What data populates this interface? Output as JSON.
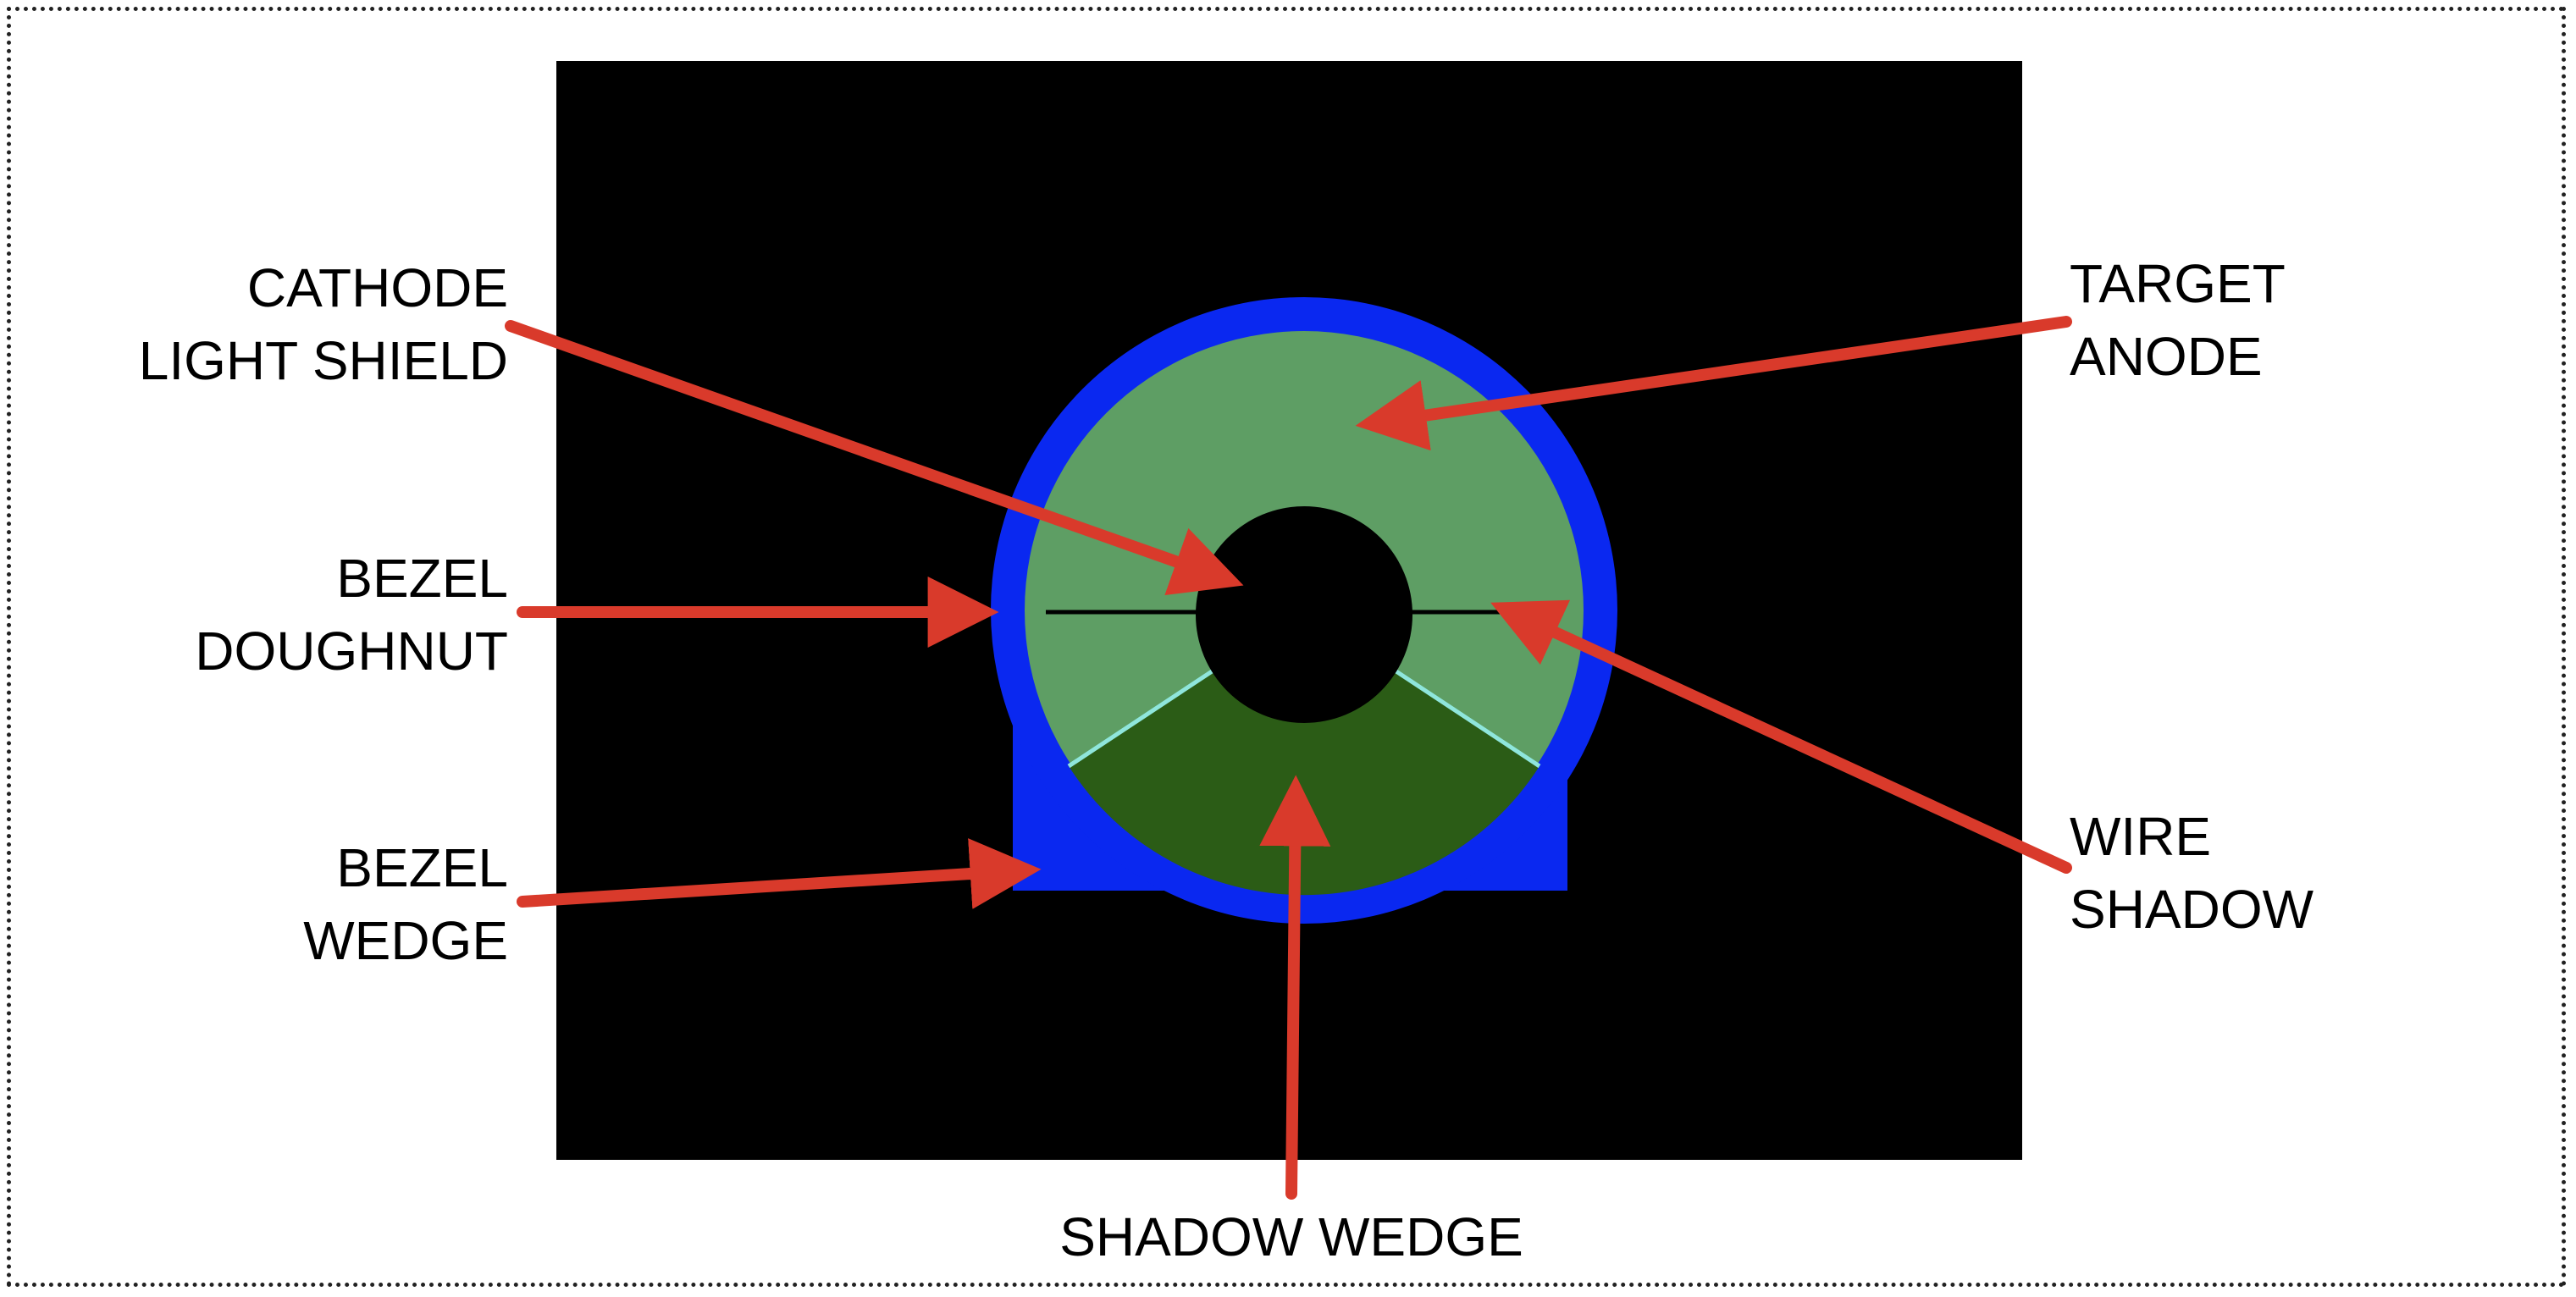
{
  "colors": {
    "background": "#000000",
    "bezel": "#0a28f0",
    "target_anode": "#5e9e64",
    "shadow_wedge": "#2b5c16",
    "shadow_edge": "#8fe6dc",
    "wire": "#000000",
    "arrow": "#d93a2b"
  },
  "labels": {
    "cathode_light_shield": [
      "CATHODE",
      "LIGHT SHIELD"
    ],
    "bezel_doughnut": [
      "BEZEL",
      "DOUGHNUT"
    ],
    "bezel_wedge": [
      "BEZEL",
      "WEDGE"
    ],
    "target_anode": [
      "TARGET",
      "ANODE"
    ],
    "wire_shadow": [
      "WIRE",
      "SHADOW"
    ],
    "shadow_wedge": "SHADOW WEDGE"
  }
}
